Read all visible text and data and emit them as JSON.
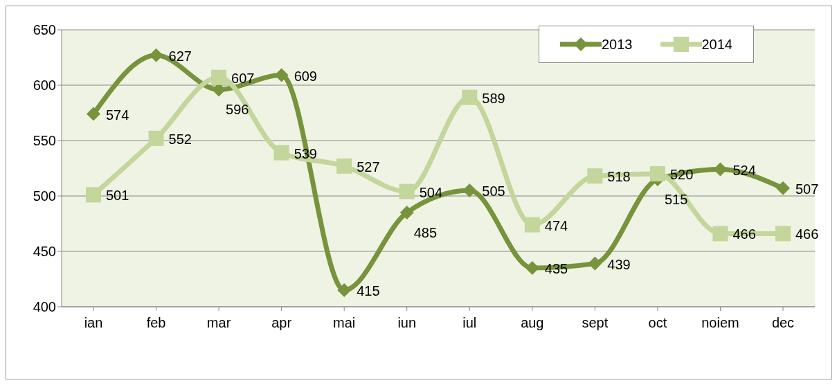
{
  "chart_data": {
    "type": "line",
    "categories": [
      "ian",
      "feb",
      "mar",
      "apr",
      "mai",
      "iun",
      "iul",
      "aug",
      "sept",
      "oct",
      "noiem",
      "dec"
    ],
    "series": [
      {
        "name": "2013",
        "color": "#77933c",
        "marker": "diamond",
        "values": [
          574,
          627,
          596,
          609,
          415,
          485,
          505,
          435,
          439,
          515,
          524,
          507
        ]
      },
      {
        "name": "2014",
        "color": "#c3d69b",
        "marker": "square",
        "values": [
          501,
          552,
          607,
          539,
          527,
          504,
          589,
          474,
          518,
          520,
          466,
          466
        ]
      }
    ],
    "ylim": [
      400,
      650
    ],
    "yticks": [
      400,
      450,
      500,
      550,
      600,
      650
    ],
    "grid": "y",
    "legend": "top right",
    "data_labels": true,
    "line_style": "solid"
  }
}
